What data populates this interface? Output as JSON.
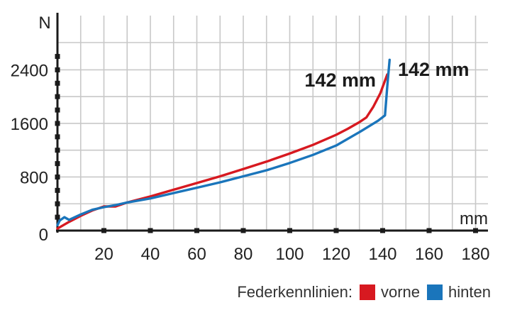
{
  "chart_data": {
    "type": "line",
    "title": "",
    "xlabel": "mm",
    "ylabel": "N",
    "xlim": [
      0,
      180
    ],
    "ylim": [
      0,
      2700
    ],
    "x_ticks": [
      20,
      40,
      60,
      80,
      100,
      120,
      140,
      160,
      180
    ],
    "y_ticks": [
      0,
      800,
      1600,
      2400
    ],
    "x_tick_labels": [
      "20",
      "40",
      "60",
      "80",
      "100",
      "120",
      "140",
      "160",
      "180"
    ],
    "y_tick_labels": [
      "0",
      "800",
      "1600",
      "2400"
    ],
    "grid": true,
    "legend": {
      "title": "Federkennlinien:",
      "placement": "bottom-right",
      "entries": [
        {
          "name": "vorne",
          "color": "#d71920"
        },
        {
          "name": "hinten",
          "color": "#1a75bb"
        }
      ]
    },
    "series": [
      {
        "name": "vorne",
        "color": "#d71920",
        "x": [
          0,
          5,
          10,
          15,
          20,
          25,
          30,
          40,
          50,
          60,
          70,
          80,
          90,
          100,
          110,
          120,
          125,
          130,
          133,
          136,
          139,
          142
        ],
        "y": [
          30,
          130,
          220,
          300,
          360,
          360,
          420,
          510,
          610,
          710,
          810,
          920,
          1030,
          1150,
          1280,
          1430,
          1520,
          1620,
          1690,
          1850,
          2050,
          2330
        ]
      },
      {
        "name": "hinten",
        "color": "#1a75bb",
        "x": [
          0,
          1,
          3,
          5,
          10,
          15,
          20,
          25,
          30,
          40,
          50,
          60,
          70,
          80,
          90,
          100,
          110,
          120,
          130,
          138,
          141,
          142,
          143
        ],
        "y": [
          80,
          150,
          200,
          160,
          240,
          310,
          350,
          380,
          420,
          480,
          560,
          640,
          720,
          810,
          900,
          1010,
          1130,
          1270,
          1470,
          1640,
          1720,
          2150,
          2550
        ]
      }
    ],
    "annotations": [
      {
        "text": "142 mm",
        "series": "vorne"
      },
      {
        "text": "142 mm",
        "series": "hinten"
      }
    ]
  }
}
